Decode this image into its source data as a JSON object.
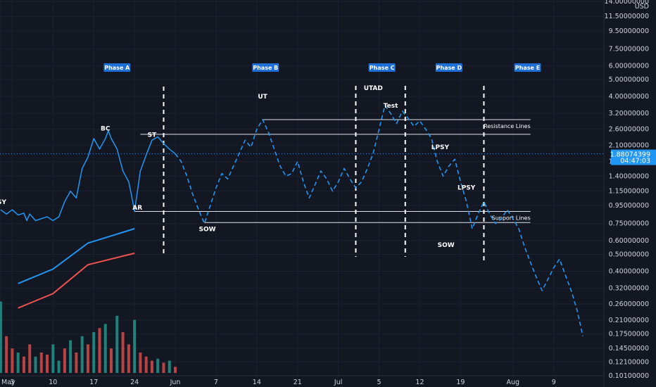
{
  "chart_data": {
    "type": "line",
    "y_axis": {
      "scale": "log",
      "unit": "USD",
      "ylim": [
        0.1,
        14
      ],
      "tick_labels": [
        "14.00000000",
        "11.50000000",
        "9.50000000",
        "7.50000000",
        "6.00000000",
        "5.00000000",
        "4.00000000",
        "3.20000000",
        "2.60000000",
        "2.10000000",
        "1.70000000",
        "1.40000000",
        "1.15000000",
        "0.95000000",
        "0.75000000",
        "0.60000000",
        "0.50000000",
        "0.40000000",
        "0.32000000",
        "0.26000000",
        "0.21000000",
        "0.17500000",
        "0.14500000",
        "0.12100000",
        "0.10100000"
      ],
      "tick_values": [
        14,
        11.5,
        9.5,
        7.5,
        6,
        5,
        4,
        3.2,
        2.6,
        2.1,
        1.7,
        1.4,
        1.15,
        0.95,
        0.75,
        0.6,
        0.5,
        0.4,
        0.32,
        0.26,
        0.21,
        0.175,
        0.145,
        0.121,
        0.101
      ]
    },
    "x_axis": {
      "tick_labels": [
        "May",
        "3",
        "10",
        "17",
        "24",
        "Jun",
        "7",
        "14",
        "21",
        "Jul",
        "5",
        "12",
        "19",
        "Aug",
        "9"
      ],
      "tick_days": [
        0,
        2,
        9,
        16,
        23,
        30,
        37,
        44,
        51,
        58,
        65,
        72,
        79,
        88,
        95
      ],
      "date_range": [
        "May 1",
        "Aug 9"
      ]
    },
    "price_badge": {
      "value": "1.88074399",
      "countdown": "04:47:03",
      "price": 1.88
    },
    "series": [
      {
        "name": "Price",
        "style": "solid",
        "color": "#2196f3",
        "points": [
          [
            0,
            0.9
          ],
          [
            1,
            0.85
          ],
          [
            2,
            0.9
          ],
          [
            3,
            0.84
          ],
          [
            4,
            0.86
          ],
          [
            4.5,
            0.78
          ],
          [
            5,
            0.85
          ],
          [
            6,
            0.78
          ],
          [
            7,
            0.8
          ],
          [
            8,
            0.82
          ],
          [
            9,
            0.78
          ],
          [
            10,
            0.82
          ],
          [
            11,
            1.0
          ],
          [
            12,
            1.15
          ],
          [
            13,
            1.05
          ],
          [
            14,
            1.55
          ],
          [
            15,
            1.8
          ],
          [
            16,
            2.3
          ],
          [
            17,
            2.0
          ],
          [
            18,
            2.3
          ],
          [
            18.5,
            2.55
          ],
          [
            19,
            2.3
          ],
          [
            20,
            2.0
          ],
          [
            21,
            1.5
          ],
          [
            22,
            1.3
          ],
          [
            22.5,
            1.08
          ],
          [
            23,
            0.88
          ],
          [
            24,
            1.5
          ],
          [
            25,
            1.85
          ],
          [
            26,
            2.25
          ],
          [
            27,
            2.35
          ],
          [
            28,
            2.15
          ],
          [
            29,
            2.0
          ],
          [
            30,
            1.88
          ]
        ]
      },
      {
        "name": "Projection",
        "style": "dashed",
        "color": "#2196f3",
        "points": [
          [
            30,
            1.88
          ],
          [
            31,
            1.7
          ],
          [
            32,
            1.4
          ],
          [
            33,
            1.1
          ],
          [
            34,
            0.9
          ],
          [
            35,
            0.75
          ],
          [
            36,
            0.95
          ],
          [
            37,
            1.2
          ],
          [
            38,
            1.45
          ],
          [
            39,
            1.35
          ],
          [
            40,
            1.6
          ],
          [
            41,
            1.9
          ],
          [
            42,
            2.25
          ],
          [
            43,
            2.05
          ],
          [
            44,
            2.6
          ],
          [
            45,
            2.95
          ],
          [
            46,
            2.5
          ],
          [
            47,
            2.0
          ],
          [
            48,
            1.6
          ],
          [
            49,
            1.4
          ],
          [
            50,
            1.45
          ],
          [
            51,
            1.7
          ],
          [
            52,
            1.3
          ],
          [
            53,
            1.05
          ],
          [
            54,
            1.25
          ],
          [
            55,
            1.5
          ],
          [
            56,
            1.35
          ],
          [
            57,
            1.15
          ],
          [
            58,
            1.3
          ],
          [
            59,
            1.55
          ],
          [
            60,
            1.35
          ],
          [
            61,
            1.2
          ],
          [
            62,
            1.3
          ],
          [
            63,
            1.55
          ],
          [
            64,
            1.9
          ],
          [
            65,
            2.6
          ],
          [
            66,
            3.55
          ],
          [
            67,
            3.2
          ],
          [
            68,
            2.8
          ],
          [
            69,
            3.3
          ],
          [
            70,
            3.0
          ],
          [
            71,
            2.7
          ],
          [
            72,
            2.9
          ],
          [
            73,
            2.6
          ],
          [
            74,
            2.3
          ],
          [
            75,
            1.7
          ],
          [
            76,
            1.4
          ],
          [
            77,
            1.6
          ],
          [
            78,
            1.75
          ],
          [
            79,
            1.3
          ],
          [
            80,
            1.0
          ],
          [
            81,
            0.7
          ],
          [
            82,
            0.85
          ],
          [
            83,
            1.0
          ],
          [
            84,
            0.85
          ],
          [
            85,
            0.75
          ],
          [
            86,
            0.8
          ],
          [
            87,
            0.9
          ],
          [
            88,
            0.8
          ],
          [
            89,
            0.7
          ],
          [
            90,
            0.55
          ],
          [
            91,
            0.45
          ],
          [
            92,
            0.37
          ],
          [
            93,
            0.31
          ],
          [
            94,
            0.36
          ],
          [
            95,
            0.42
          ],
          [
            96,
            0.47
          ],
          [
            97,
            0.38
          ],
          [
            98,
            0.31
          ],
          [
            99,
            0.24
          ],
          [
            100,
            0.17
          ]
        ]
      }
    ],
    "horizontal_lines": [
      {
        "value": 2.95,
        "day_start": 45,
        "day_end": 91,
        "label": "Resistance Lines"
      },
      {
        "value": 2.43,
        "day_start": 24,
        "day_end": 91,
        "label": ""
      },
      {
        "value": 0.88,
        "day_start": 23,
        "day_end": 91,
        "label": "Support Lines"
      },
      {
        "value": 0.76,
        "day_start": 35,
        "day_end": 91,
        "label": ""
      }
    ],
    "phase_dividers": [
      28,
      61,
      69.5,
      83
    ],
    "phases": [
      {
        "label": "Phase A",
        "day": 20
      },
      {
        "label": "Phase B",
        "day": 45.5
      },
      {
        "label": "Phase C",
        "day": 65.5
      },
      {
        "label": "Phase D",
        "day": 77
      },
      {
        "label": "Phase E",
        "day": 90.5
      }
    ],
    "annotations": [
      {
        "text": "SY",
        "day": 0.2,
        "value": 0.97
      },
      {
        "text": "BC",
        "day": 18,
        "value": 2.55
      },
      {
        "text": "ST",
        "day": 26,
        "value": 2.35
      },
      {
        "text": "AR",
        "day": 23.5,
        "value": 0.9
      },
      {
        "text": "UT",
        "day": 45,
        "value": 3.9
      },
      {
        "text": "UTAD",
        "day": 64,
        "value": 4.35
      },
      {
        "text": "Test",
        "day": 67,
        "value": 3.45
      },
      {
        "text": "SOW",
        "day": 35.5,
        "value": 0.68
      },
      {
        "text": "LPSY",
        "day": 75.5,
        "value": 2.0
      },
      {
        "text": "LPSY",
        "day": 80,
        "value": 1.17
      },
      {
        "text": "SOW",
        "day": 76.5,
        "value": 0.55
      }
    ],
    "volume": {
      "colors": {
        "up": "#26a69a",
        "down": "#ef5350"
      },
      "bars": [
        [
          0,
          35,
          "u"
        ],
        [
          1,
          18,
          "d"
        ],
        [
          2,
          12,
          "d"
        ],
        [
          3,
          10,
          "u"
        ],
        [
          4,
          8,
          "d"
        ],
        [
          5,
          14,
          "d"
        ],
        [
          6,
          8,
          "u"
        ],
        [
          7,
          10,
          "d"
        ],
        [
          8,
          9,
          "d"
        ],
        [
          9,
          14,
          "u"
        ],
        [
          10,
          6,
          "u"
        ],
        [
          11,
          12,
          "d"
        ],
        [
          12,
          16,
          "u"
        ],
        [
          13,
          10,
          "d"
        ],
        [
          14,
          18,
          "u"
        ],
        [
          15,
          14,
          "d"
        ],
        [
          16,
          20,
          "u"
        ],
        [
          17,
          22,
          "d"
        ],
        [
          18,
          24,
          "u"
        ],
        [
          19,
          12,
          "d"
        ],
        [
          20,
          28,
          "u"
        ],
        [
          21,
          20,
          "d"
        ],
        [
          22,
          14,
          "d"
        ],
        [
          23,
          26,
          "u"
        ],
        [
          24,
          10,
          "d"
        ],
        [
          25,
          8,
          "d"
        ],
        [
          26,
          6,
          "d"
        ],
        [
          27,
          7,
          "u"
        ],
        [
          28,
          5,
          "d"
        ],
        [
          29,
          6,
          "u"
        ],
        [
          30,
          3,
          "d"
        ]
      ],
      "indicator_lines": [
        {
          "color": "#2196f3",
          "points": [
            [
              3,
              0.62
            ],
            [
              9,
              0.72
            ],
            [
              15,
              0.9
            ],
            [
              23,
              1.0
            ]
          ]
        },
        {
          "color": "#ef5350",
          "points": [
            [
              3,
              0.45
            ],
            [
              9,
              0.55
            ],
            [
              15,
              0.75
            ],
            [
              23,
              0.83
            ]
          ]
        }
      ]
    }
  }
}
